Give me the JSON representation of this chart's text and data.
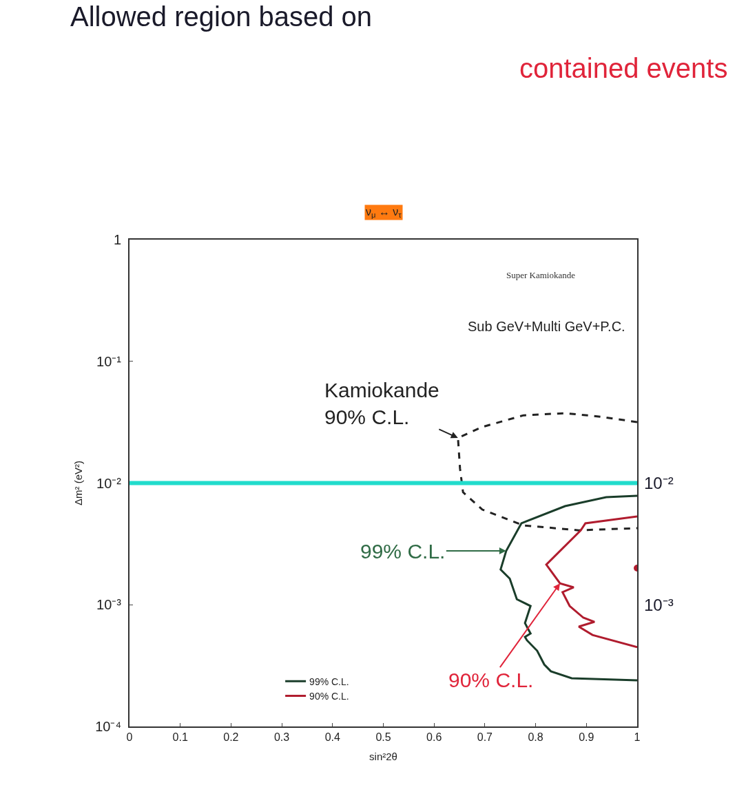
{
  "chart_data": {
    "type": "line",
    "title": "Allowed region based on",
    "subtitle": "contained events",
    "xlabel": "sin²2θ",
    "ylabel": "Δm² (eV²)",
    "xlim": [
      0,
      1
    ],
    "xticks": [
      0,
      0.1,
      0.2,
      0.3,
      0.4,
      0.5,
      0.6,
      0.7,
      0.8,
      0.9,
      1
    ],
    "ylim": [
      0.0001,
      1
    ],
    "yticks": [
      {
        "value": 0.0001,
        "label": "10⁻⁴"
      },
      {
        "value": 0.001,
        "label": "10⁻³"
      },
      {
        "value": 0.01,
        "label": "10⁻²"
      },
      {
        "value": 0.1,
        "label": "10⁻¹"
      },
      {
        "value": 1,
        "label": "1"
      }
    ],
    "log": "y",
    "legend": "bottom left",
    "series": [
      {
        "color": "#222222",
        "line_style": "dashed",
        "x": [
          1.0,
          0.925,
          0.858,
          0.776,
          0.695,
          0.647,
          0.651,
          0.657,
          0.695,
          0.776,
          0.885,
          1.0
        ],
        "values": [
          0.0317,
          0.0352,
          0.0375,
          0.036,
          0.0289,
          0.0235,
          0.0132,
          0.0084,
          0.00605,
          0.00449,
          0.00409,
          0.00426
        ]
      },
      {
        "name": "99% C.L.",
        "color": "#1a3d2a",
        "line_style": "solid",
        "x": [
          1.0,
          0.939,
          0.858,
          0.772,
          0.742,
          0.731,
          0.749,
          0.763,
          0.79,
          0.779,
          0.79,
          0.779,
          0.783,
          0.803,
          0.817,
          0.83,
          0.871,
          1.0
        ],
        "values": [
          0.00786,
          0.00765,
          0.00646,
          0.00467,
          0.00277,
          0.00195,
          0.00164,
          0.00111,
          0.000977,
          0.000706,
          0.000581,
          0.000544,
          0.00051,
          0.000419,
          0.000323,
          0.000284,
          0.000249,
          0.000239
        ]
      },
      {
        "name": "90% C.L.",
        "color": "#b01c2e",
        "line_style": "solid",
        "x": [
          1.0,
          0.898,
          0.889,
          0.821,
          0.848,
          0.875,
          0.853,
          0.867,
          0.894,
          0.916,
          0.885,
          0.912,
          1.0
        ],
        "values": [
          0.00532,
          0.00467,
          0.00409,
          0.00214,
          0.0015,
          0.00139,
          0.00127,
          0.000977,
          0.000783,
          0.000724,
          0.000661,
          0.000565,
          0.000448
        ]
      },
      {
        "type": "scatter",
        "marker": "circle",
        "color": "#b01c2e",
        "x": [
          1.0
        ],
        "values": [
          0.002
        ]
      }
    ],
    "ref_lines": [
      {
        "axis": "y",
        "value": 0.01,
        "color": "#22dccc"
      }
    ],
    "annotations": [
      "ν$_{μ}$ ↔ ν$_{τ}$",
      "Super Kamiokande",
      "Sub GeV+Multi GeV+P.C.",
      "10⁻²",
      "10⁻³",
      {
        "text": "Kamiokande\n90% C.L.",
        "x": 0.647,
        "y": 0.0235
      },
      {
        "text": "99% C.L.",
        "x": 0.742,
        "y": 0.00277
      },
      {
        "text": "90% C.L.",
        "x": 0.848,
        "y": 0.0015
      }
    ]
  }
}
